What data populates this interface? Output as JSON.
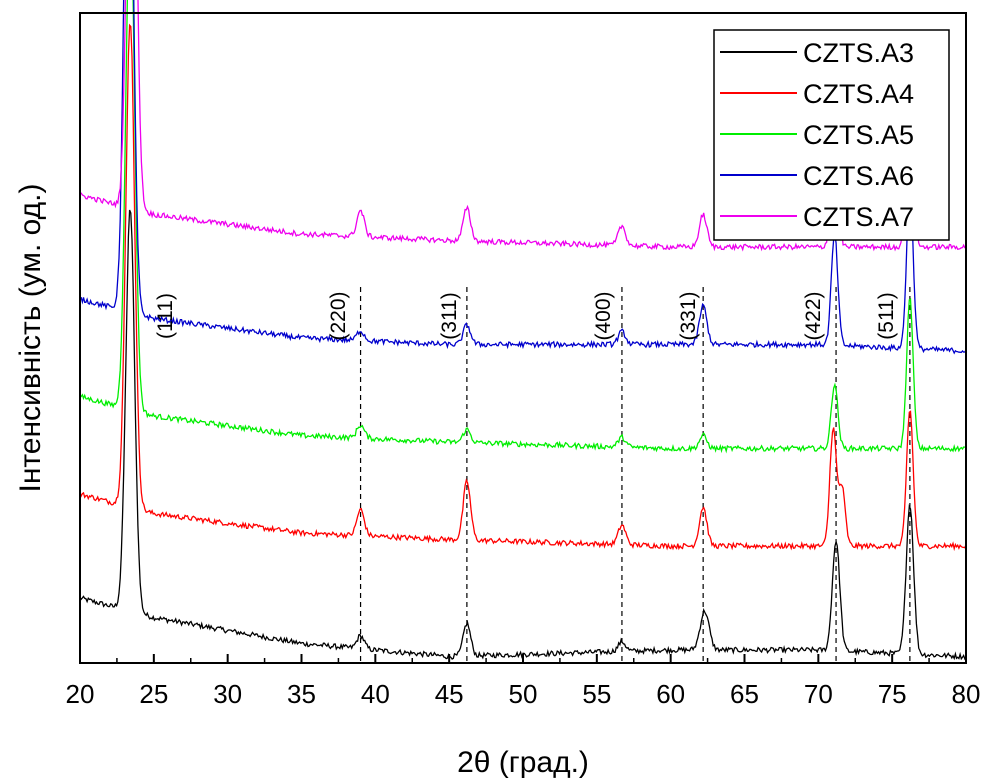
{
  "chart_data": {
    "type": "line",
    "xlabel": "2θ (град.)",
    "ylabel": "Інтенсивність (ум. од.)",
    "xlim": [
      20,
      80
    ],
    "x_ticks": [
      20,
      25,
      30,
      35,
      40,
      45,
      50,
      55,
      60,
      65,
      70,
      75,
      80
    ],
    "y_ticks": [],
    "legend_position": "top-right",
    "reference_lines": [
      {
        "x": 39.0,
        "label": "(220)"
      },
      {
        "x": 46.2,
        "label": "(311)"
      },
      {
        "x": 56.7,
        "label": "(400)"
      },
      {
        "x": 62.2,
        "label": "(331)"
      },
      {
        "x": 71.2,
        "label": "(422)"
      },
      {
        "x": 76.2,
        "label": "(511)"
      }
    ],
    "unlined_labels": [
      {
        "x": 25.9,
        "label": "(111)"
      }
    ],
    "series": [
      {
        "name": "CZTS.A3",
        "color": "#000000",
        "baseline": [
          [
            20,
            0.1
          ],
          [
            25,
            0.07
          ],
          [
            35,
            0.03
          ],
          [
            45,
            0.01
          ],
          [
            60,
            0.02
          ],
          [
            70,
            0.02
          ],
          [
            80,
            0.01
          ]
        ],
        "peaks": [
          [
            23.4,
            0.62,
            0.3
          ],
          [
            39.0,
            0.02,
            0.25
          ],
          [
            46.2,
            0.05,
            0.25
          ],
          [
            56.7,
            0.015,
            0.25
          ],
          [
            62.3,
            0.06,
            0.3
          ],
          [
            71.2,
            0.17,
            0.25
          ],
          [
            76.2,
            0.23,
            0.25
          ]
        ]
      },
      {
        "name": "CZTS.A4",
        "color": "#ff0000",
        "baseline": [
          [
            20,
            0.26
          ],
          [
            25,
            0.23
          ],
          [
            35,
            0.2
          ],
          [
            45,
            0.19
          ],
          [
            60,
            0.18
          ],
          [
            70,
            0.18
          ],
          [
            80,
            0.18
          ]
        ],
        "peaks": [
          [
            23.4,
            0.75,
            0.3
          ],
          [
            39.0,
            0.04,
            0.25
          ],
          [
            46.2,
            0.09,
            0.25
          ],
          [
            56.7,
            0.03,
            0.25
          ],
          [
            62.2,
            0.06,
            0.25
          ],
          [
            71.0,
            0.18,
            0.22
          ],
          [
            71.6,
            0.09,
            0.22
          ],
          [
            76.2,
            0.21,
            0.22
          ]
        ]
      },
      {
        "name": "CZTS.A5",
        "color": "#00ee00",
        "baseline": [
          [
            20,
            0.41
          ],
          [
            25,
            0.38
          ],
          [
            35,
            0.35
          ],
          [
            45,
            0.34
          ],
          [
            60,
            0.33
          ],
          [
            70,
            0.33
          ],
          [
            80,
            0.33
          ]
        ],
        "peaks": [
          [
            23.4,
            0.78,
            0.3
          ],
          [
            39.0,
            0.02,
            0.25
          ],
          [
            46.2,
            0.02,
            0.25
          ],
          [
            56.7,
            0.015,
            0.25
          ],
          [
            62.2,
            0.02,
            0.25
          ],
          [
            71.1,
            0.1,
            0.22
          ],
          [
            76.2,
            0.23,
            0.22
          ]
        ]
      },
      {
        "name": "CZTS.A6",
        "color": "#0000cc",
        "baseline": [
          [
            20,
            0.56
          ],
          [
            25,
            0.53
          ],
          [
            35,
            0.5
          ],
          [
            45,
            0.49
          ],
          [
            60,
            0.49
          ],
          [
            70,
            0.49
          ],
          [
            80,
            0.48
          ]
        ],
        "peaks": [
          [
            23.3,
            0.92,
            0.3
          ],
          [
            39.0,
            0.015,
            0.25
          ],
          [
            46.2,
            0.03,
            0.25
          ],
          [
            56.7,
            0.02,
            0.25
          ],
          [
            62.2,
            0.06,
            0.25
          ],
          [
            71.1,
            0.17,
            0.22
          ],
          [
            76.2,
            0.25,
            0.22
          ]
        ]
      },
      {
        "name": "CZTS.A7",
        "color": "#ee00ee",
        "baseline": [
          [
            20,
            0.72
          ],
          [
            25,
            0.69
          ],
          [
            35,
            0.66
          ],
          [
            45,
            0.65
          ],
          [
            60,
            0.64
          ],
          [
            70,
            0.64
          ],
          [
            80,
            0.64
          ]
        ],
        "peaks": [
          [
            23.5,
            0.88,
            0.3
          ],
          [
            39.0,
            0.04,
            0.25
          ],
          [
            46.2,
            0.05,
            0.25
          ],
          [
            56.7,
            0.03,
            0.25
          ],
          [
            62.2,
            0.05,
            0.25
          ],
          [
            71.1,
            0.22,
            0.22
          ],
          [
            76.2,
            0.31,
            0.22
          ]
        ]
      }
    ]
  }
}
